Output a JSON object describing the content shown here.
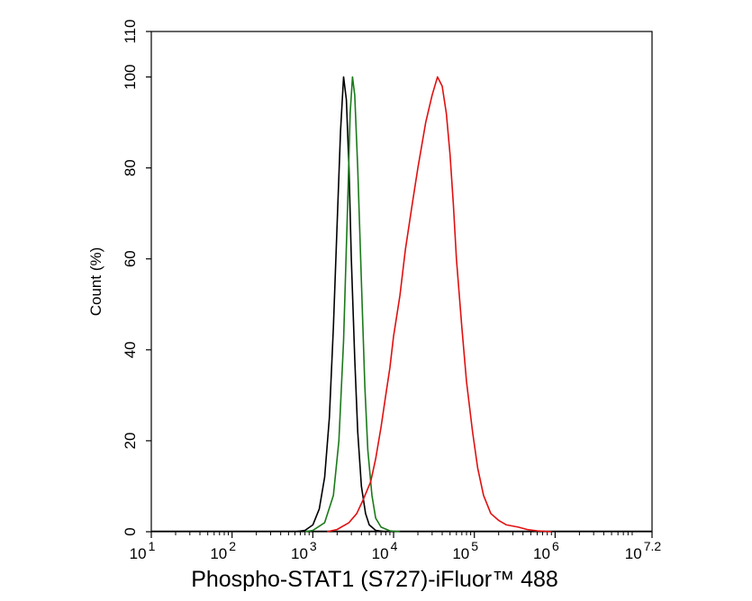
{
  "chart_data": {
    "type": "line",
    "xlabel": "Phospho-STAT1 (S727)-iFluor™ 488",
    "ylabel": "Count  (%)",
    "x_scale": "log",
    "xlim": [
      10,
      15848932
    ],
    "ylim": [
      0,
      110
    ],
    "x_ticks": [
      {
        "value": 10,
        "base": "10",
        "exp": "1"
      },
      {
        "value": 100,
        "base": "10",
        "exp": "2"
      },
      {
        "value": 1000,
        "base": "10",
        "exp": "3"
      },
      {
        "value": 10000,
        "base": "10",
        "exp": "4"
      },
      {
        "value": 100000,
        "base": "10",
        "exp": "5"
      },
      {
        "value": 1000000,
        "base": "10",
        "exp": "6"
      },
      {
        "value": 15848932,
        "base": "10",
        "exp": "7.2"
      }
    ],
    "y_ticks": [
      0,
      20,
      40,
      60,
      80,
      100,
      110
    ],
    "grid": false,
    "series": [
      {
        "color": "#000000",
        "points": [
          [
            600,
            0
          ],
          [
            800,
            0.3
          ],
          [
            1000,
            1.5
          ],
          [
            1200,
            5
          ],
          [
            1400,
            12
          ],
          [
            1600,
            25
          ],
          [
            1800,
            45
          ],
          [
            2000,
            68
          ],
          [
            2200,
            88
          ],
          [
            2400,
            100
          ],
          [
            2600,
            95
          ],
          [
            2800,
            80
          ],
          [
            3000,
            60
          ],
          [
            3300,
            38
          ],
          [
            3600,
            22
          ],
          [
            4000,
            10
          ],
          [
            4500,
            4
          ],
          [
            5000,
            1.5
          ],
          [
            6000,
            0.3
          ],
          [
            8000,
            0
          ]
        ]
      },
      {
        "color": "#1a7a1a",
        "points": [
          [
            800,
            0
          ],
          [
            1000,
            0.3
          ],
          [
            1400,
            2
          ],
          [
            1800,
            8
          ],
          [
            2100,
            20
          ],
          [
            2400,
            42
          ],
          [
            2700,
            72
          ],
          [
            2900,
            92
          ],
          [
            3100,
            100
          ],
          [
            3300,
            96
          ],
          [
            3600,
            80
          ],
          [
            4000,
            55
          ],
          [
            4400,
            32
          ],
          [
            4800,
            18
          ],
          [
            5400,
            8
          ],
          [
            6000,
            3
          ],
          [
            7000,
            1
          ],
          [
            9000,
            0.2
          ],
          [
            12000,
            0
          ]
        ]
      },
      {
        "color": "#e01010",
        "points": [
          [
            1500,
            0
          ],
          [
            2000,
            0.5
          ],
          [
            2800,
            2
          ],
          [
            3500,
            4
          ],
          [
            4200,
            7
          ],
          [
            5200,
            11
          ],
          [
            6000,
            16
          ],
          [
            7000,
            23
          ],
          [
            8000,
            30
          ],
          [
            9000,
            36
          ],
          [
            10000,
            43
          ],
          [
            12000,
            52
          ],
          [
            14000,
            62
          ],
          [
            17000,
            72
          ],
          [
            20000,
            80
          ],
          [
            25000,
            90
          ],
          [
            30000,
            96
          ],
          [
            35000,
            100
          ],
          [
            40000,
            98
          ],
          [
            45000,
            92
          ],
          [
            50000,
            83
          ],
          [
            55000,
            72
          ],
          [
            60000,
            60
          ],
          [
            70000,
            45
          ],
          [
            80000,
            33
          ],
          [
            95000,
            22
          ],
          [
            110000,
            14
          ],
          [
            130000,
            8
          ],
          [
            160000,
            4
          ],
          [
            200000,
            2.5
          ],
          [
            250000,
            1.5
          ],
          [
            350000,
            1
          ],
          [
            450000,
            0.5
          ],
          [
            600000,
            0.2
          ],
          [
            900000,
            0
          ]
        ]
      }
    ]
  }
}
